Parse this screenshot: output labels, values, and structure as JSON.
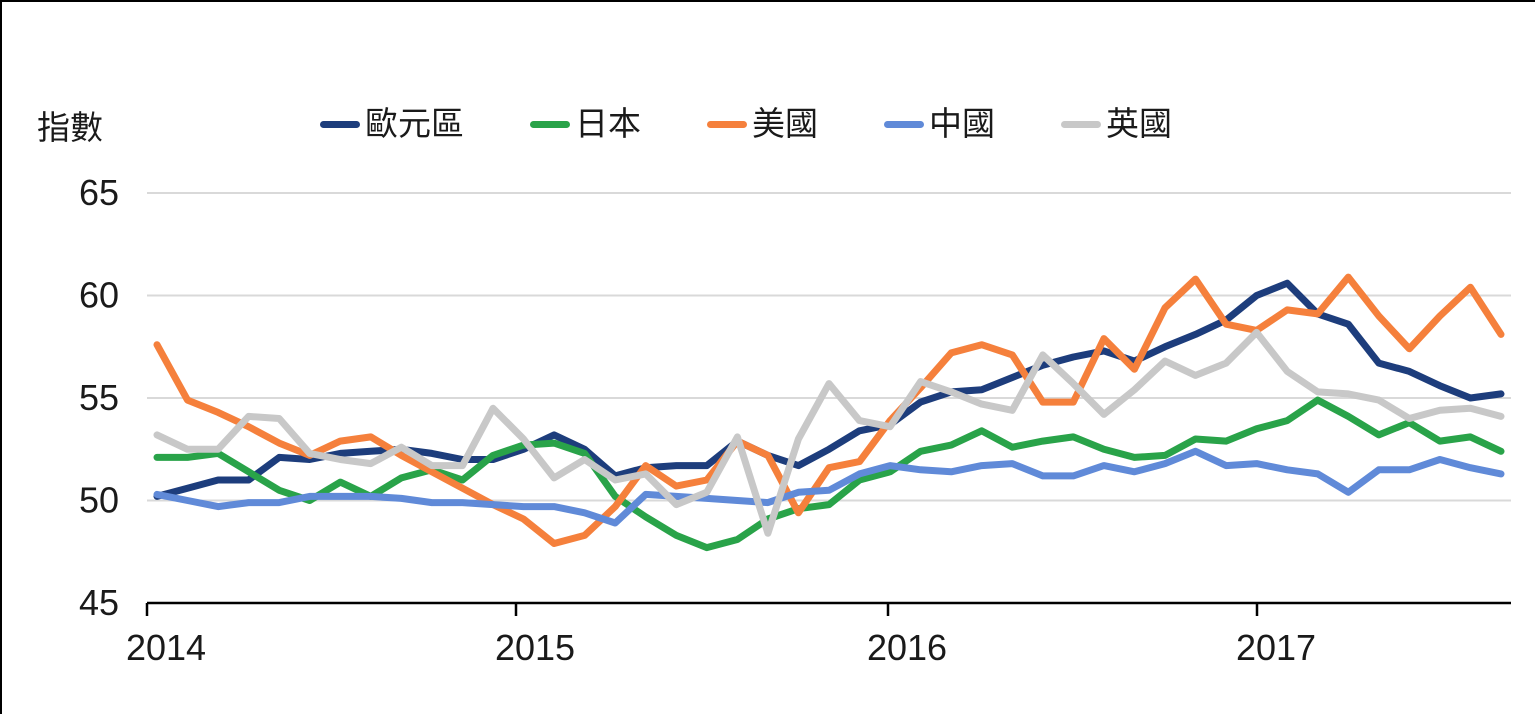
{
  "chart_data": {
    "type": "line",
    "title": "",
    "ylabel": "指數",
    "ylim": [
      45,
      65
    ],
    "y_tick_labels": [
      65,
      60,
      55,
      50,
      45
    ],
    "x_tick_labels": [
      "2014",
      "2015",
      "2016",
      "2017"
    ],
    "x_frequency": "monthly",
    "x_start": "2014-01",
    "x_end": "2017-09",
    "grid": "horizontal",
    "gridline_color": "#d9d9d9",
    "axis_color": "#000000",
    "legend_position": "top",
    "series": [
      {
        "name": "歐元區",
        "color": "#1d3d7c",
        "values": [
          50.2,
          50.6,
          51.0,
          51.0,
          52.1,
          52.0,
          52.3,
          52.4,
          52.5,
          52.3,
          52.0,
          52.0,
          52.5,
          53.2,
          52.5,
          51.2,
          51.6,
          51.7,
          51.7,
          52.9,
          52.2,
          51.7,
          52.5,
          53.4,
          53.7,
          54.8,
          55.3,
          55.4,
          56.0,
          56.6,
          57.0,
          57.3,
          56.8,
          57.5,
          58.1,
          58.8,
          60.0,
          60.6,
          59.1,
          58.6,
          56.7,
          56.3,
          55.6,
          55.0,
          55.2
        ]
      },
      {
        "name": "日本",
        "color": "#29a349",
        "values": [
          52.1,
          52.1,
          52.3,
          51.4,
          50.5,
          50.0,
          50.9,
          50.2,
          51.1,
          51.5,
          51.0,
          52.2,
          52.7,
          52.8,
          52.3,
          50.2,
          49.2,
          48.3,
          47.7,
          48.1,
          49.1,
          49.6,
          49.8,
          51.0,
          51.4,
          52.4,
          52.7,
          53.4,
          52.6,
          52.9,
          53.1,
          52.5,
          52.1,
          52.2,
          53.0,
          52.9,
          53.5,
          53.9,
          54.9,
          54.1,
          53.2,
          53.8,
          52.9,
          53.1,
          52.4
        ]
      },
      {
        "name": "美國",
        "color": "#f5803c",
        "values": [
          57.6,
          54.9,
          54.3,
          53.6,
          52.8,
          52.2,
          52.9,
          53.1,
          52.2,
          51.4,
          50.6,
          49.8,
          49.1,
          47.9,
          48.3,
          49.7,
          51.7,
          50.7,
          51.0,
          52.9,
          52.2,
          49.4,
          51.6,
          51.9,
          53.9,
          55.5,
          57.2,
          57.6,
          57.1,
          54.8,
          54.8,
          57.9,
          56.4,
          59.4,
          60.8,
          58.6,
          58.3,
          59.3,
          59.1,
          60.9,
          59.0,
          57.4,
          59.0,
          60.4,
          58.1
        ]
      },
      {
        "name": "中國",
        "color": "#608ad8",
        "values": [
          50.3,
          50.0,
          49.7,
          49.9,
          49.9,
          50.2,
          50.2,
          50.2,
          50.1,
          49.9,
          49.9,
          49.8,
          49.7,
          49.7,
          49.4,
          48.9,
          50.3,
          50.2,
          50.1,
          50.0,
          49.9,
          50.4,
          50.5,
          51.3,
          51.7,
          51.5,
          51.4,
          51.7,
          51.8,
          51.2,
          51.2,
          51.7,
          51.4,
          51.8,
          52.4,
          51.7,
          51.8,
          51.5,
          51.3,
          50.4,
          51.5,
          51.5,
          52.0,
          51.6,
          51.3
        ]
      },
      {
        "name": "英國",
        "color": "#c8c8c8",
        "values": [
          53.2,
          52.5,
          52.5,
          54.1,
          54.0,
          52.3,
          52.0,
          51.8,
          52.6,
          51.7,
          51.7,
          54.5,
          53.0,
          51.1,
          52.0,
          51.0,
          51.3,
          49.8,
          50.4,
          53.1,
          48.4,
          53.0,
          55.7,
          53.9,
          53.6,
          55.8,
          55.3,
          54.7,
          54.4,
          57.1,
          55.7,
          54.2,
          55.4,
          56.8,
          56.1,
          56.7,
          58.2,
          56.3,
          55.3,
          55.2,
          54.9,
          54.0,
          54.4,
          54.5,
          54.1
        ]
      }
    ]
  }
}
